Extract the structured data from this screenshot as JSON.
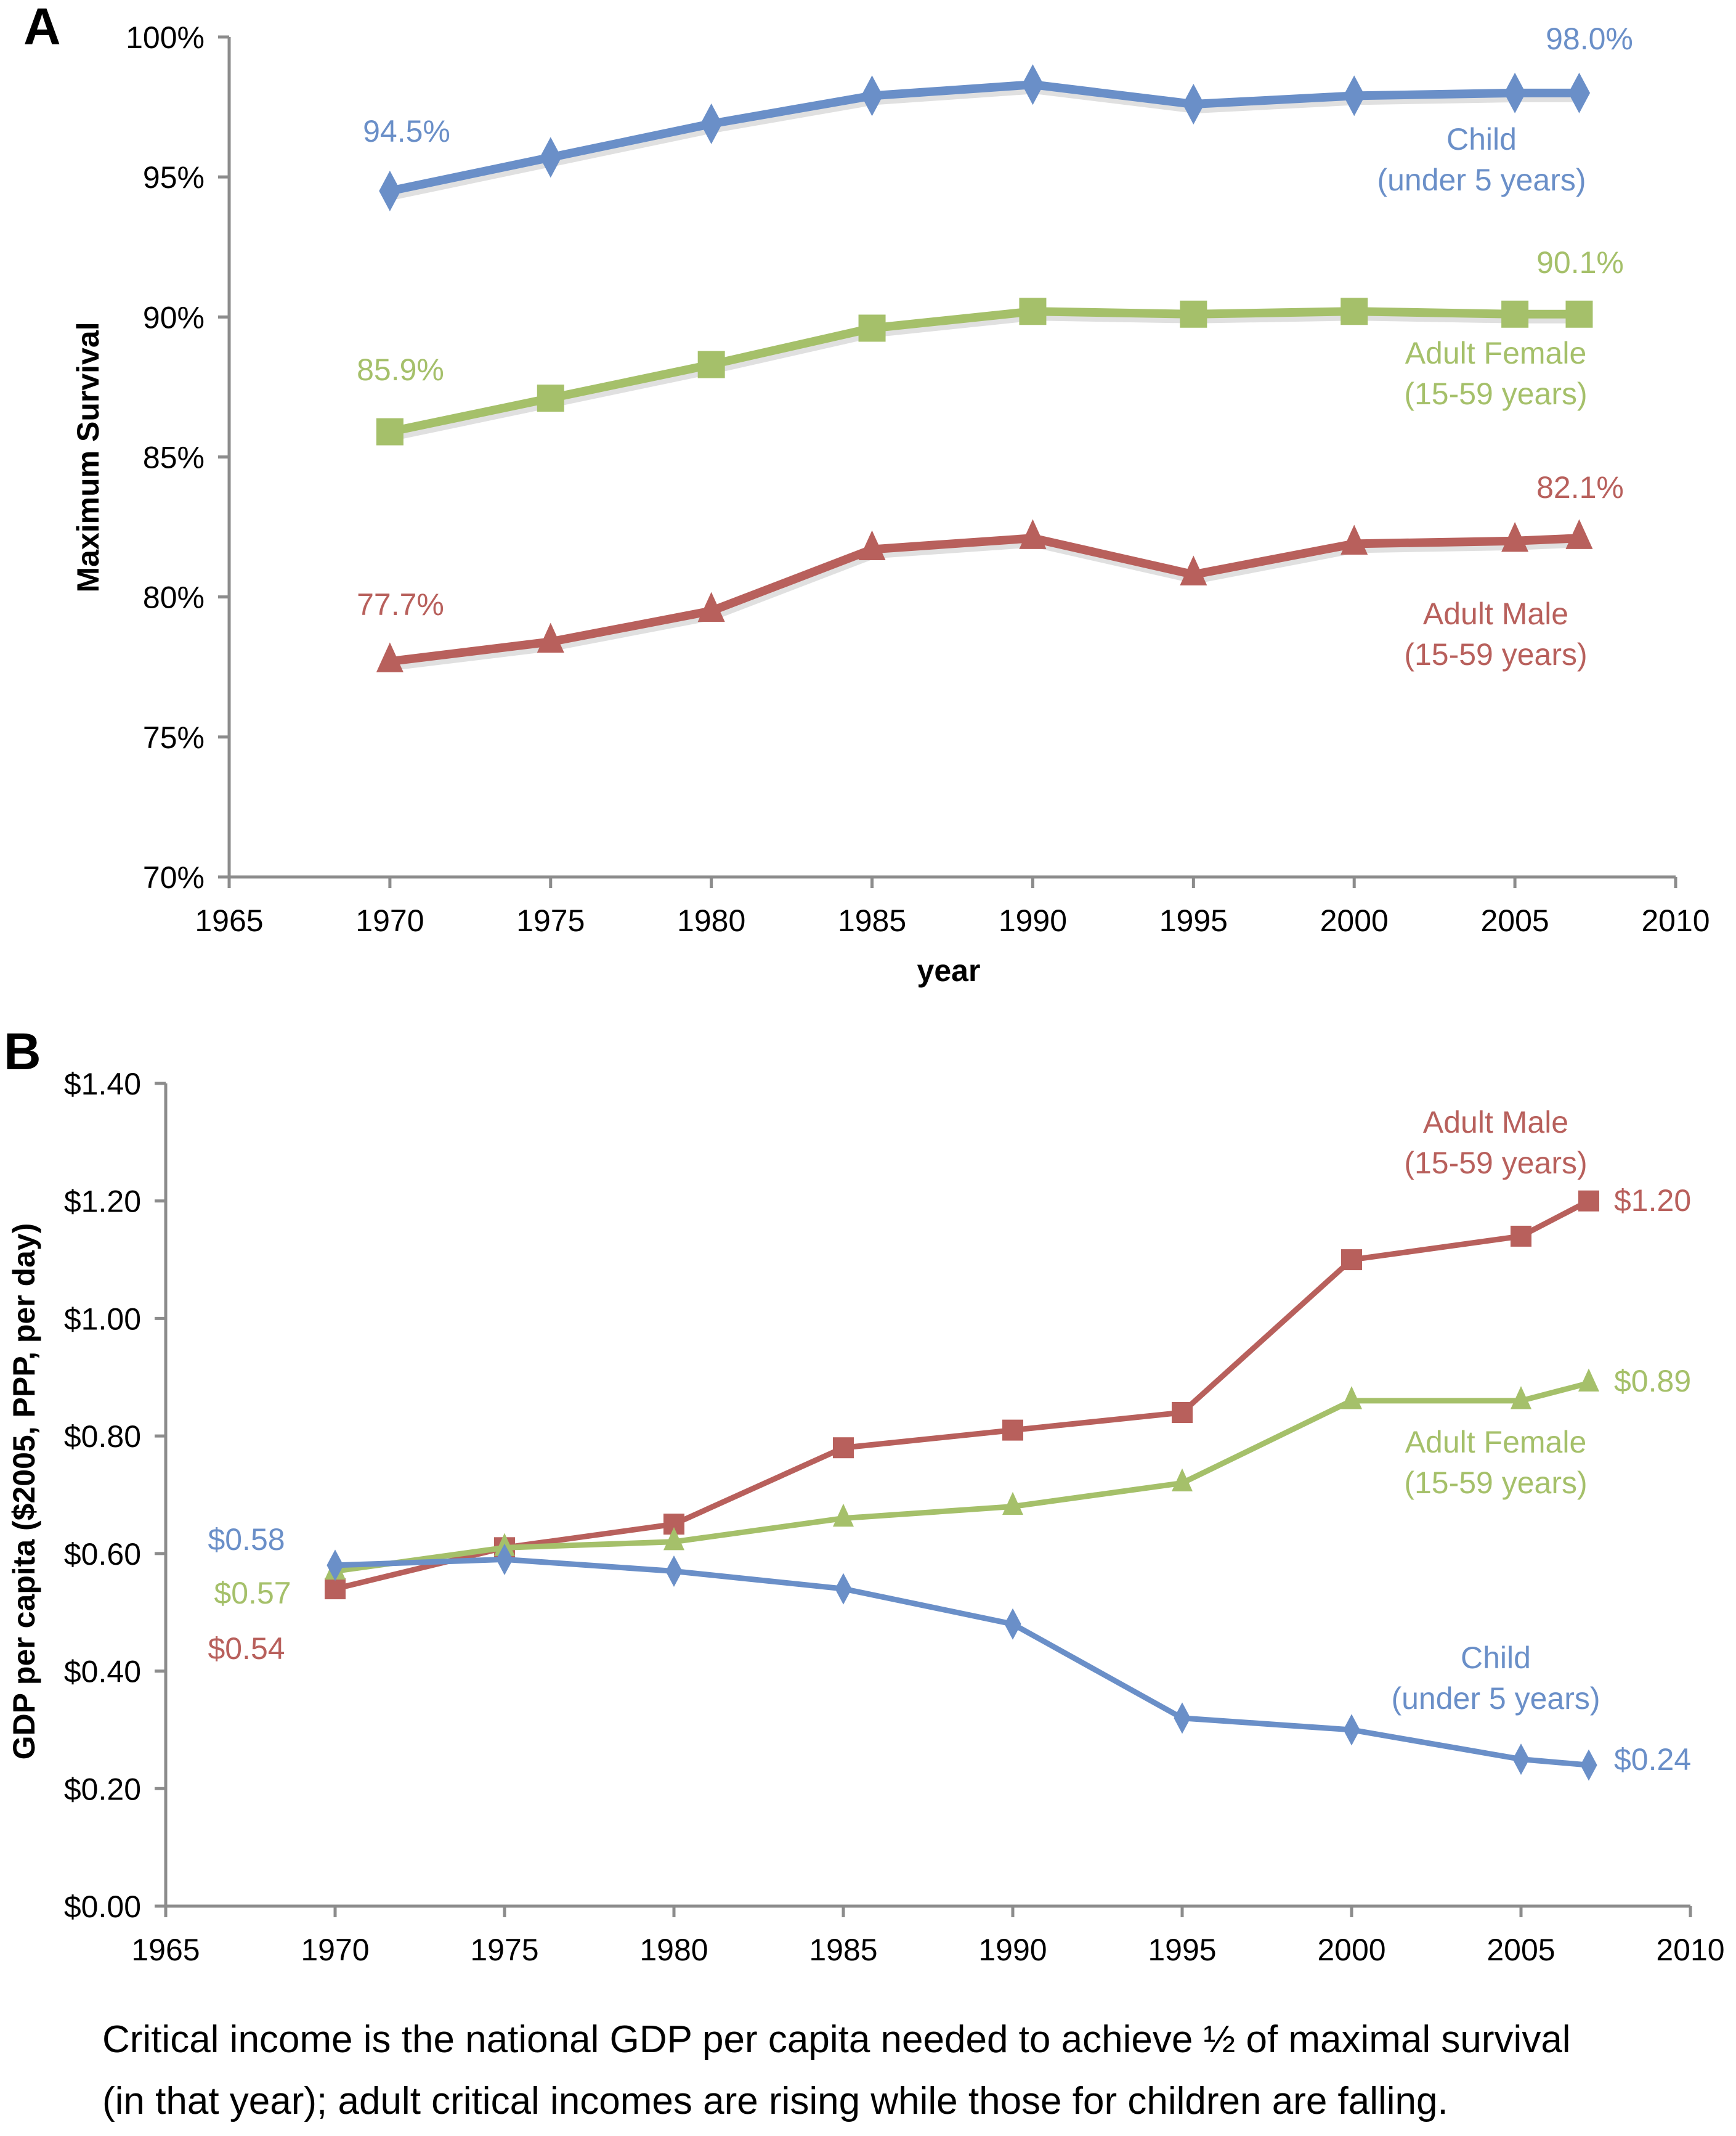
{
  "figure": {
    "caption_lines": [
      "Critical income is the national GDP per capita needed to achieve ½ of maximal survival",
      "(in that year); adult critical incomes are rising while those for children are falling."
    ]
  },
  "colors": {
    "child": "#6a8fc8",
    "female": "#a5c06a",
    "male": "#b8605c",
    "axis": "#8c8c8c"
  },
  "chart_data": [
    {
      "panel": "A",
      "type": "line",
      "title": "",
      "xlabel": "year",
      "ylabel": "Maximum Survival",
      "xlim": [
        1965,
        2010
      ],
      "ylim": [
        70,
        100
      ],
      "x_ticks": [
        "1965",
        "1970",
        "1975",
        "1980",
        "1985",
        "1990",
        "1995",
        "2000",
        "2005",
        "2010"
      ],
      "y_ticks": [
        "70%",
        "75%",
        "80%",
        "85%",
        "90%",
        "95%",
        "100%"
      ],
      "grid": false,
      "x": [
        1970,
        1975,
        1980,
        1985,
        1990,
        1995,
        2000,
        2005,
        2007
      ],
      "series": [
        {
          "name": "Child (under 5 years)",
          "label_lines": [
            "Child",
            "(under 5 years)"
          ],
          "color_key": "child",
          "marker": "diamond",
          "values": [
            94.5,
            95.7,
            96.9,
            97.9,
            98.3,
            97.6,
            97.9,
            98.0,
            98.0
          ],
          "start_label": "94.5%",
          "end_label": "98.0%"
        },
        {
          "name": "Adult Female (15-59 years)",
          "label_lines": [
            "Adult Female",
            "(15-59 years)"
          ],
          "color_key": "female",
          "marker": "square",
          "values": [
            85.9,
            87.1,
            88.3,
            89.6,
            90.2,
            90.1,
            90.2,
            90.1,
            90.1
          ],
          "start_label": "85.9%",
          "end_label": "90.1%"
        },
        {
          "name": "Adult Male (15-59 years)",
          "label_lines": [
            "Adult Male",
            "(15-59 years)"
          ],
          "color_key": "male",
          "marker": "triangle",
          "values": [
            77.7,
            78.4,
            79.5,
            81.7,
            82.1,
            80.8,
            81.9,
            82.0,
            82.1
          ],
          "start_label": "77.7%",
          "end_label": "82.1%"
        }
      ]
    },
    {
      "panel": "B",
      "type": "line",
      "title": "",
      "xlabel": "",
      "ylabel": "GDP per capita ($2005, PPP, per day)",
      "xlim": [
        1965,
        2010
      ],
      "ylim": [
        0,
        1.4
      ],
      "x_ticks": [
        "1965",
        "1970",
        "1975",
        "1980",
        "1985",
        "1990",
        "1995",
        "2000",
        "2005",
        "2010"
      ],
      "y_ticks": [
        "$0.00",
        "$0.20",
        "$0.40",
        "$0.60",
        "$0.80",
        "$1.00",
        "$1.20",
        "$1.40"
      ],
      "grid": false,
      "x": [
        1970,
        1975,
        1980,
        1985,
        1990,
        1995,
        2000,
        2005,
        2007
      ],
      "series": [
        {
          "name": "Adult Male (15-59 years)",
          "label_lines": [
            "Adult Male",
            "(15-59 years)"
          ],
          "color_key": "male",
          "marker": "square",
          "values": [
            0.54,
            0.61,
            0.65,
            0.78,
            0.81,
            0.84,
            1.1,
            1.14,
            1.2
          ],
          "start_label": "$0.54",
          "end_label": "$1.20"
        },
        {
          "name": "Adult Female (15-59 years)",
          "label_lines": [
            "Adult Female",
            "(15-59 years)"
          ],
          "color_key": "female",
          "marker": "triangle",
          "values": [
            0.57,
            0.61,
            0.62,
            0.66,
            0.68,
            0.72,
            0.86,
            0.86,
            0.89
          ],
          "start_label": "$0.57",
          "end_label": "$0.89"
        },
        {
          "name": "Child (under 5 years)",
          "label_lines": [
            "Child",
            "(under 5 years)"
          ],
          "color_key": "child",
          "marker": "diamond",
          "values": [
            0.58,
            0.59,
            0.57,
            0.54,
            0.48,
            0.32,
            0.3,
            0.25,
            0.24
          ],
          "start_label": "$0.58",
          "end_label": "$0.24"
        }
      ]
    }
  ]
}
